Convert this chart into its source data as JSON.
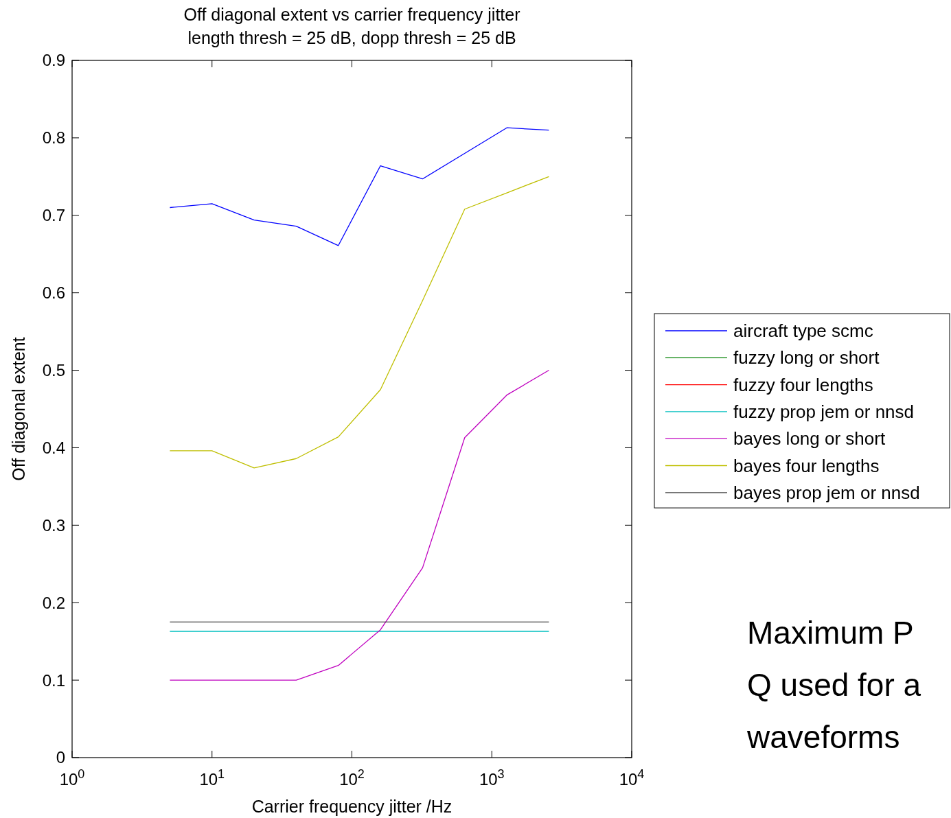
{
  "chart_data": {
    "type": "line",
    "title": "Off diagonal extent vs carrier frequency jitter",
    "subtitle": "length thresh = 25 dB, dopp thresh = 25 dB",
    "xlabel": "Carrier frequency jitter /Hz",
    "ylabel": "Off diagonal extent",
    "log": "x",
    "x": [
      5,
      10,
      20,
      40,
      80,
      160,
      320,
      640,
      1280,
      2560
    ],
    "xlim": [
      1,
      10000
    ],
    "xticks": [
      {
        "value": 1,
        "label": "10$^{0}$"
      },
      {
        "value": 10,
        "label": "10$^{1}$"
      },
      {
        "value": 100,
        "label": "10$^{2}$"
      },
      {
        "value": 1000,
        "label": "10$^{3}$"
      },
      {
        "value": 10000,
        "label": "10$^{4}$"
      }
    ],
    "ylim": [
      0,
      0.9
    ],
    "yticks": [
      0,
      0.1,
      0.2,
      0.3,
      0.4,
      0.5,
      0.6,
      0.7,
      0.8,
      0.9
    ],
    "grid": false,
    "legend": "right",
    "marker": "none",
    "line_style": "solid",
    "series": [
      {
        "name": "aircraft type scmc",
        "color": "#0000ff",
        "values": [
          0.71,
          0.715,
          0.694,
          0.686,
          0.661,
          0.764,
          0.747,
          0.78,
          0.813,
          0.81
        ]
      },
      {
        "name": "fuzzy long or short",
        "color": "#008000",
        "values": [
          null,
          null,
          null,
          null,
          null,
          null,
          null,
          null,
          null,
          null
        ]
      },
      {
        "name": "fuzzy four lengths",
        "color": "#ff0000",
        "values": [
          null,
          null,
          null,
          null,
          null,
          null,
          null,
          null,
          null,
          null
        ]
      },
      {
        "name": "fuzzy prop jem or nnsd",
        "color": "#00bfbf",
        "values": [
          0.163,
          0.163,
          0.163,
          0.163,
          0.163,
          0.163,
          0.163,
          0.163,
          0.163,
          0.163
        ]
      },
      {
        "name": "bayes long or short",
        "color": "#bf00bf",
        "values": [
          0.1,
          0.1,
          0.1,
          0.1,
          0.119,
          0.165,
          0.245,
          0.413,
          0.468,
          0.5
        ]
      },
      {
        "name": "bayes four lengths",
        "color": "#bfbf00",
        "values": [
          0.396,
          0.396,
          0.374,
          0.386,
          0.414,
          0.475,
          0.59,
          0.708,
          0.729,
          0.75
        ]
      },
      {
        "name": "bayes prop jem or nnsd",
        "color": "#404040",
        "values": [
          0.175,
          0.175,
          0.175,
          0.175,
          0.175,
          0.175,
          0.175,
          0.175,
          0.175,
          0.175
        ]
      }
    ],
    "annotations": [
      "Maximum P",
      "Q used for a",
      "waveforms"
    ]
  }
}
